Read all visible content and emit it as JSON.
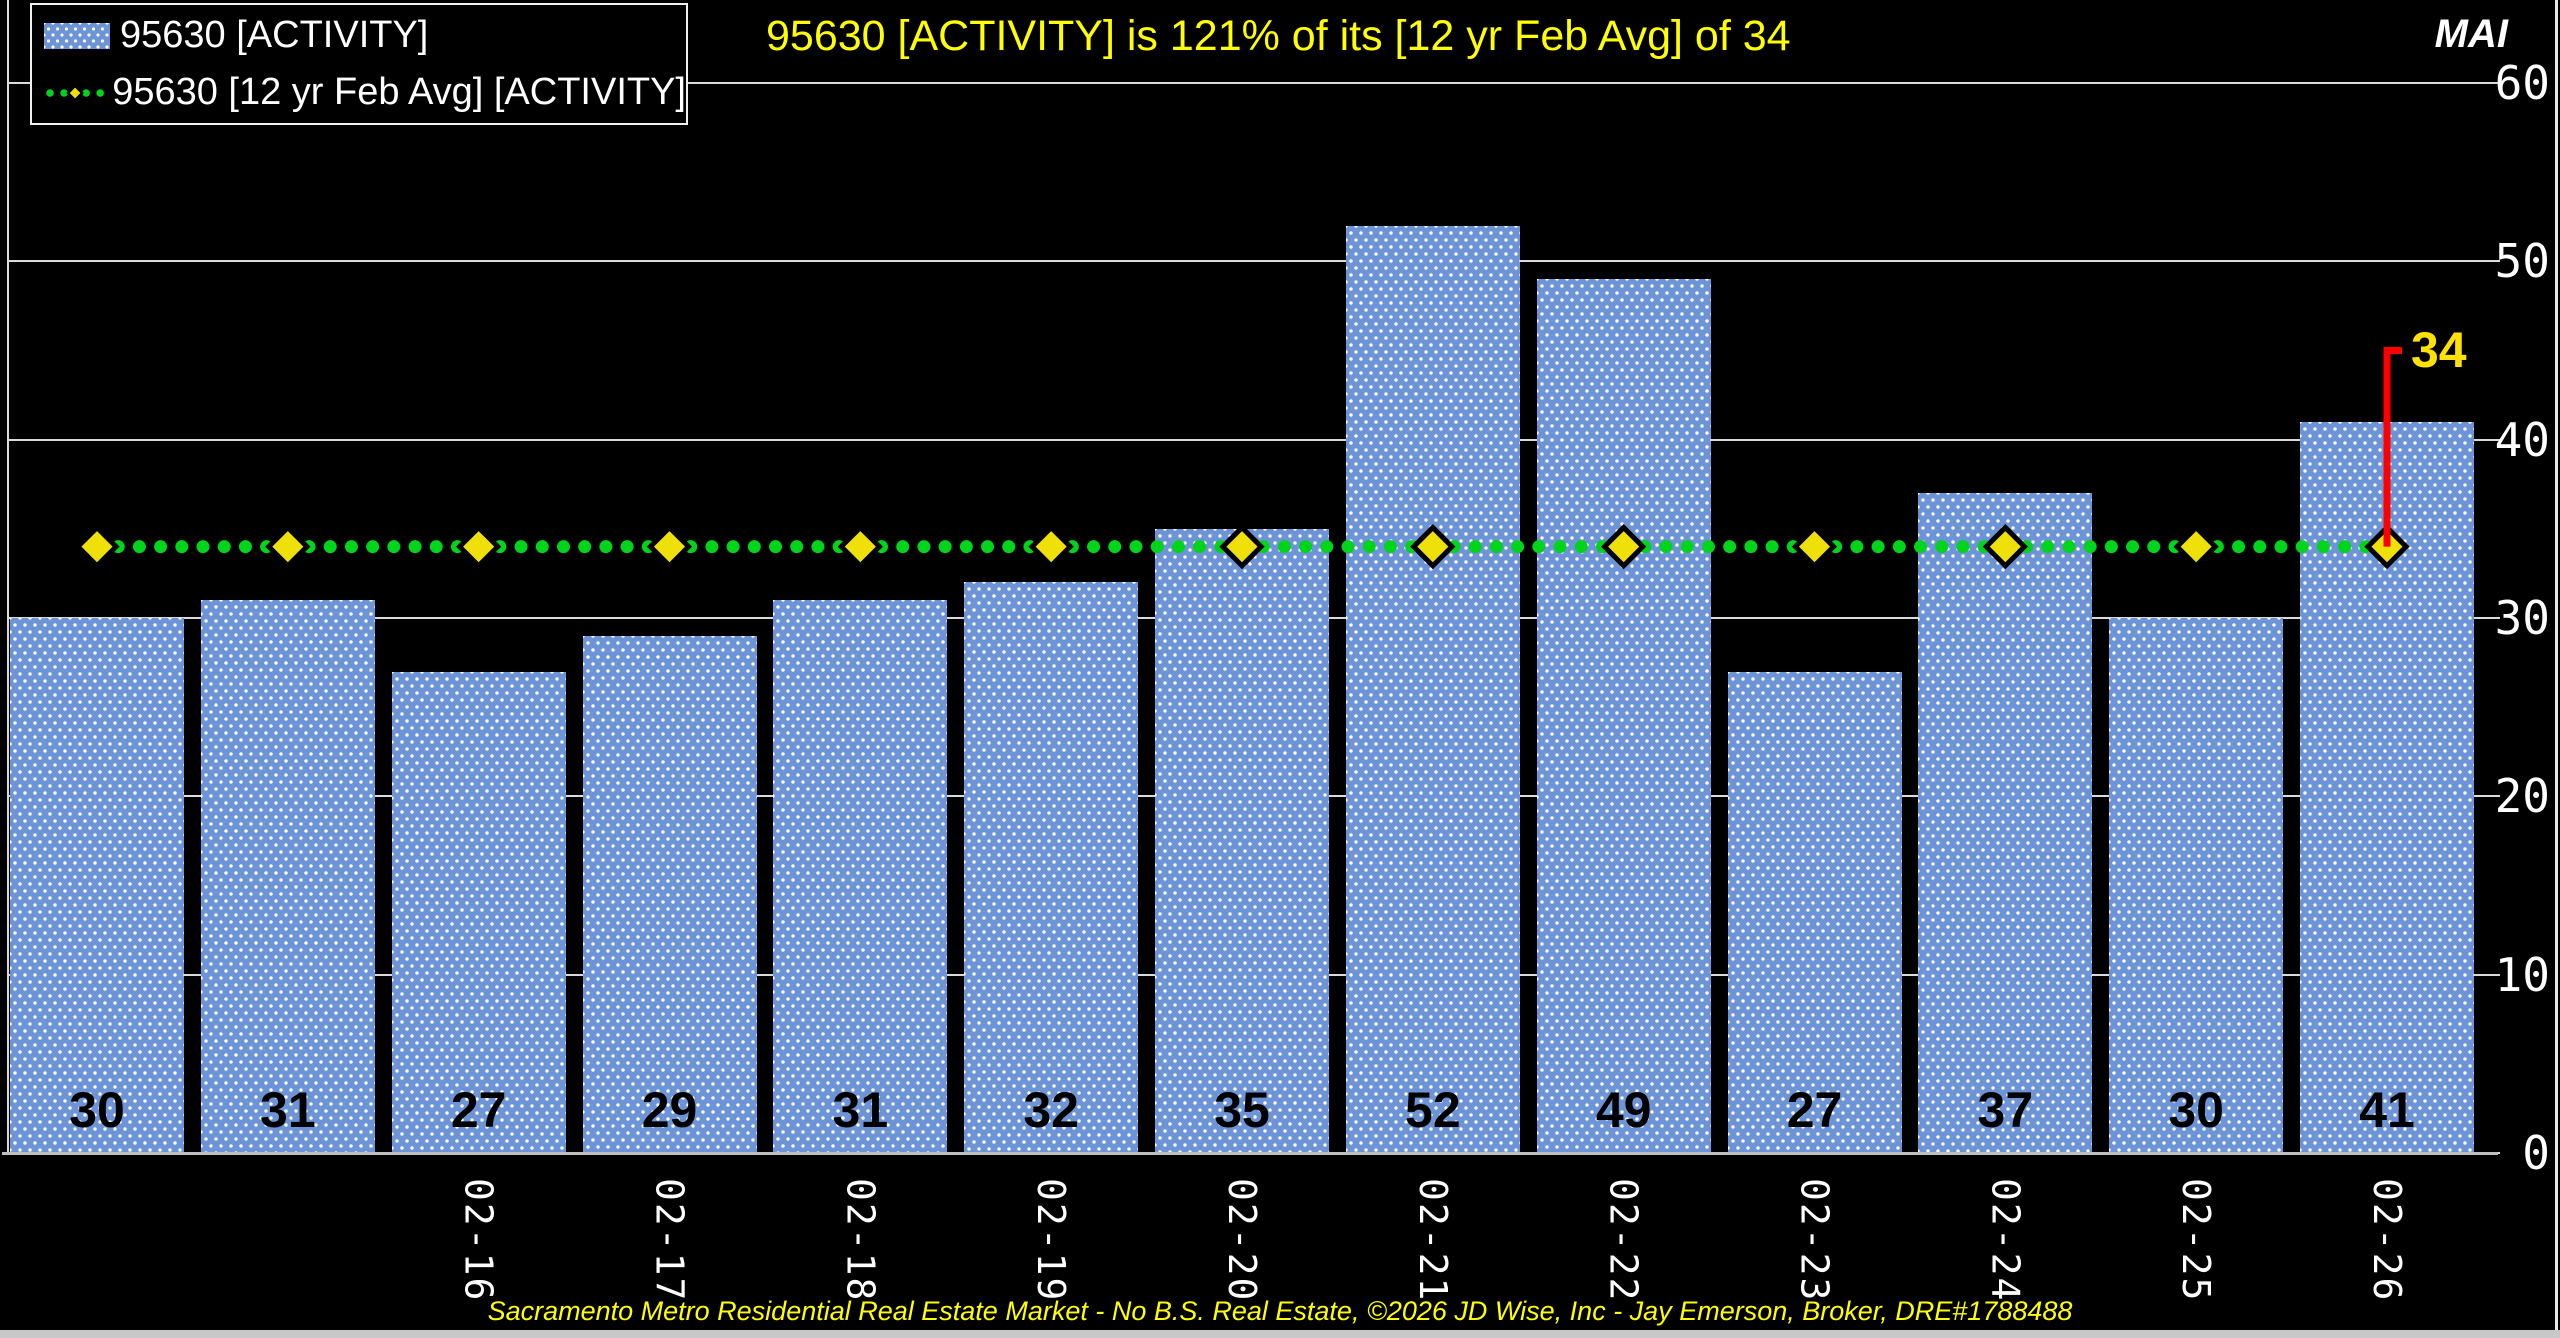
{
  "title": "95630 [ACTIVITY] is 121% of its [12 yr Feb Avg] of 34",
  "watermark": "MAI",
  "legend": {
    "items": [
      {
        "marker": "bar-pattern-swatch",
        "label": "95630 [ACTIVITY]"
      },
      {
        "marker": "dotted-line-with-diamond",
        "label": "95630 [12 yr Feb Avg] [ACTIVITY]"
      }
    ]
  },
  "chart_data": {
    "type": "bar",
    "categories": [
      "",
      "",
      "02-16",
      "02-17",
      "02-18",
      "02-19",
      "02-20",
      "02-21",
      "02-22",
      "02-23",
      "02-24",
      "02-25",
      "02-26"
    ],
    "values": [
      30,
      31,
      27,
      29,
      31,
      32,
      35,
      52,
      49,
      27,
      37,
      30,
      41
    ],
    "series_name": "95630 [ACTIVITY]",
    "avg_line": {
      "name": "95630 [12 yr Feb Avg] [ACTIVITY]",
      "value": 34,
      "annotation": "34"
    },
    "ylim": [
      0,
      60
    ],
    "yticks": [
      0,
      10,
      20,
      30,
      40,
      50,
      60
    ],
    "yaxis_side": "right",
    "grid": true,
    "legend_position": "top-left",
    "colors": {
      "background": "#000000",
      "bar": "#6C94D6",
      "bar_pattern_dot": "#FFFFFF",
      "value_label": "#000000",
      "avg_dot": "#00D41B",
      "avg_diamond": "#EFE009",
      "annotation_line": "#FF0000",
      "annotation_text": "#FFE103",
      "title": "#FFFF00",
      "gridline": "#DADADA",
      "axis_text": "#FFFFFF"
    }
  },
  "footer": "Sacramento Metro Residential Real Estate Market - No B.S. Real Estate, ©2026 JD Wise, Inc - Jay Emerson, Broker, DRE#1788488"
}
